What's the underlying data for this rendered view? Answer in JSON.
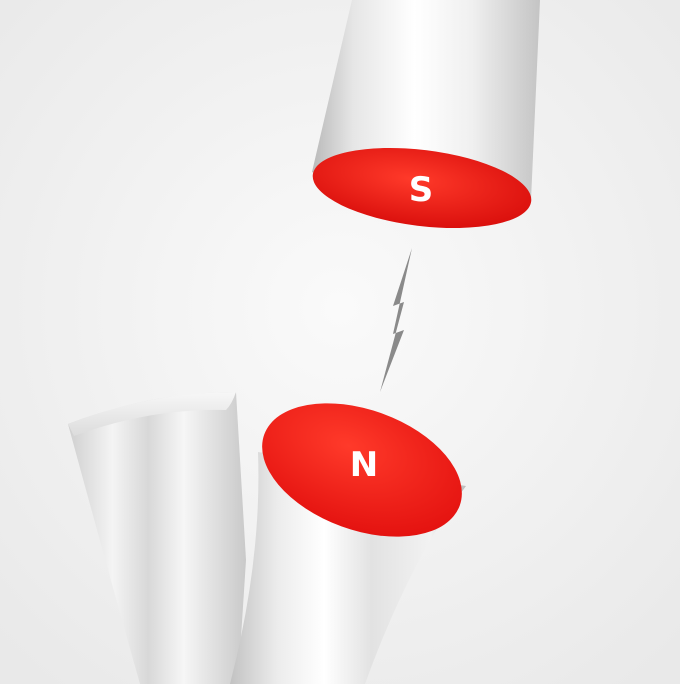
{
  "scene": {
    "top_magnet": {
      "pole_label": "S"
    },
    "bottom_magnet": {
      "pole_label": "N"
    },
    "icons": {
      "spark": "lightning-bolt-icon"
    },
    "colors": {
      "background": "#f2f2f2",
      "pole_face": "#e8110f",
      "pole_face_highlight": "#ff3a2a",
      "cylinder_light": "#ffffff",
      "cylinder_mid": "#e4e4e4",
      "cylinder_dark": "#bdbdbd",
      "spark": "#8a8a8a"
    }
  }
}
